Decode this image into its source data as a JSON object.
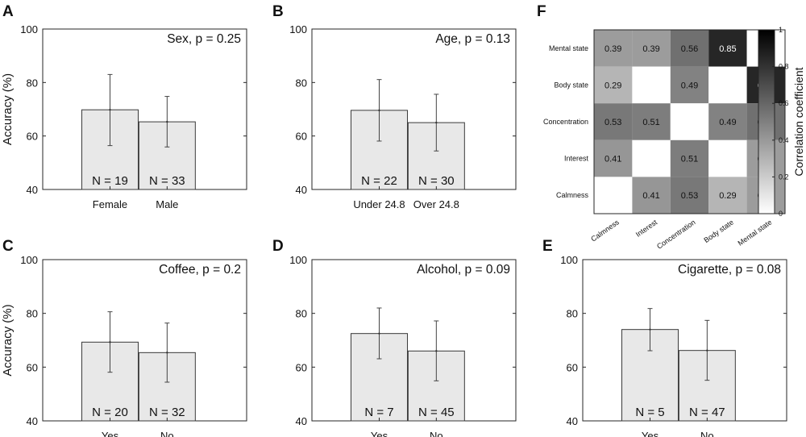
{
  "chart_data": [
    {
      "panel": "A",
      "type": "bar",
      "annotation": "Sex, p = 0.25",
      "ylabel": "Accuracy (%)",
      "ylim": [
        40,
        100
      ],
      "yticks": [
        40,
        60,
        80,
        100
      ],
      "categories": [
        "Female",
        "Male"
      ],
      "values": [
        69.8,
        65.3
      ],
      "errors_low": [
        56.4,
        55.9
      ],
      "errors_high": [
        83.0,
        74.8
      ],
      "n_labels": [
        "N = 19",
        "N = 33"
      ]
    },
    {
      "panel": "B",
      "type": "bar",
      "annotation": "Age, p = 0.13",
      "ylabel": "",
      "ylim": [
        40,
        100
      ],
      "yticks": [
        40,
        60,
        80,
        100
      ],
      "categories": [
        "Under 24.8",
        "Over 24.8"
      ],
      "values": [
        69.6,
        65.0
      ],
      "errors_low": [
        58.1,
        54.4
      ],
      "errors_high": [
        81.1,
        75.6
      ],
      "n_labels": [
        "N = 22",
        "N = 30"
      ]
    },
    {
      "panel": "C",
      "type": "bar",
      "annotation": "Coffee, p = 0.2",
      "ylabel": "Accuracy (%)",
      "ylim": [
        40,
        100
      ],
      "yticks": [
        40,
        60,
        80,
        100
      ],
      "categories": [
        "Yes",
        "No"
      ],
      "values": [
        69.3,
        65.4
      ],
      "errors_low": [
        58.1,
        54.4
      ],
      "errors_high": [
        80.6,
        76.4
      ],
      "n_labels": [
        "N = 20",
        "N = 32"
      ]
    },
    {
      "panel": "D",
      "type": "bar",
      "annotation": "Alcohol, p = 0.09",
      "ylabel": "",
      "ylim": [
        40,
        100
      ],
      "yticks": [
        40,
        60,
        80,
        100
      ],
      "categories": [
        "Yes",
        "No"
      ],
      "values": [
        72.5,
        66.0
      ],
      "errors_low": [
        63.1,
        54.9
      ],
      "errors_high": [
        82.0,
        77.2
      ],
      "n_labels": [
        "N = 7",
        "N = 45"
      ]
    },
    {
      "panel": "E",
      "type": "bar",
      "annotation": "Cigarette, p = 0.08",
      "ylabel": "",
      "ylim": [
        40,
        100
      ],
      "yticks": [
        40,
        60,
        80,
        100
      ],
      "categories": [
        "Yes",
        "No"
      ],
      "values": [
        74.0,
        66.2
      ],
      "errors_low": [
        66.1,
        55.1
      ],
      "errors_high": [
        81.8,
        77.4
      ],
      "n_labels": [
        "N = 5",
        "N = 47"
      ]
    },
    {
      "panel": "F",
      "type": "heatmap",
      "row_labels": [
        "Mental state",
        "Body state",
        "Concentration",
        "Interest",
        "Calmness"
      ],
      "col_labels": [
        "Calmness",
        "Interest",
        "Concentration",
        "Body state",
        "Mental state"
      ],
      "values": [
        [
          0.39,
          0.39,
          0.56,
          0.85,
          null
        ],
        [
          0.29,
          null,
          0.49,
          null,
          0.85
        ],
        [
          0.53,
          0.51,
          null,
          0.49,
          0.56
        ],
        [
          0.41,
          null,
          0.51,
          null,
          0.39
        ],
        [
          null,
          0.41,
          0.53,
          0.29,
          0.39
        ]
      ],
      "colorbar_label": "Correlation coefficient",
      "colorbar_range": [
        0,
        1
      ],
      "colorbar_ticks": [
        "0",
        "0.2",
        "0.4",
        "0.6",
        "0.8",
        "1"
      ]
    }
  ]
}
